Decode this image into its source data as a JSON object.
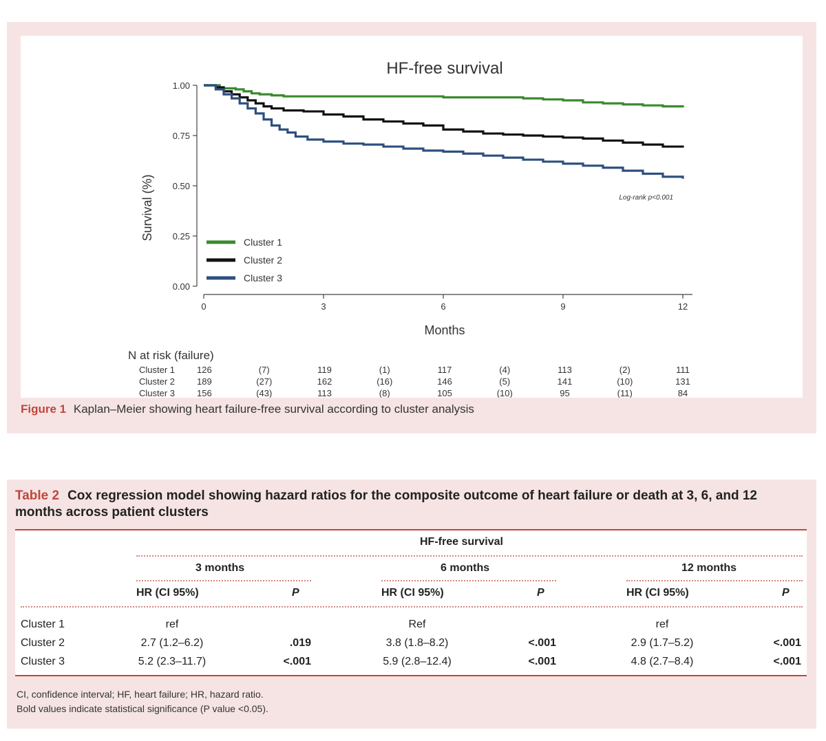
{
  "figure": {
    "label": "Figure 1",
    "caption": "Kaplan–Meier showing heart failure-free survival according to cluster analysis"
  },
  "chart_data": {
    "type": "line",
    "title": "HF-free survival",
    "xlabel": "Months",
    "ylabel": "Survival (%)",
    "xlim": [
      0,
      12
    ],
    "ylim": [
      0,
      1
    ],
    "x_ticks": [
      "0",
      "3",
      "6",
      "9",
      "12"
    ],
    "y_ticks": [
      "0.00",
      "0.25",
      "0.50",
      "0.75",
      "1.00"
    ],
    "annotation": "Log-rank p<0.001",
    "series": [
      {
        "name": "Cluster 1",
        "color": "#3a8a2e",
        "x": [
          0,
          0.4,
          0.5,
          0.8,
          1.0,
          1.2,
          1.4,
          1.7,
          2.0,
          3.0,
          4.0,
          5.0,
          5.5,
          6.0,
          6.5,
          7.0,
          7.5,
          8.0,
          8.5,
          9.0,
          9.5,
          10.0,
          10.5,
          11.0,
          11.5,
          12.0
        ],
        "y": [
          1.0,
          0.99,
          0.985,
          0.98,
          0.97,
          0.96,
          0.955,
          0.95,
          0.945,
          0.945,
          0.945,
          0.945,
          0.945,
          0.94,
          0.94,
          0.94,
          0.94,
          0.935,
          0.93,
          0.925,
          0.915,
          0.91,
          0.905,
          0.9,
          0.895,
          0.89
        ]
      },
      {
        "name": "Cluster 2",
        "color": "#111111",
        "x": [
          0,
          0.3,
          0.5,
          0.7,
          0.9,
          1.1,
          1.3,
          1.5,
          1.7,
          2.0,
          2.5,
          3.0,
          3.5,
          4.0,
          4.5,
          5.0,
          5.5,
          6.0,
          6.5,
          7.0,
          7.5,
          8.0,
          8.5,
          9.0,
          9.5,
          10.0,
          10.5,
          11.0,
          11.5,
          12.0
        ],
        "y": [
          1.0,
          0.99,
          0.97,
          0.955,
          0.94,
          0.925,
          0.91,
          0.895,
          0.885,
          0.875,
          0.87,
          0.855,
          0.845,
          0.83,
          0.82,
          0.81,
          0.8,
          0.78,
          0.77,
          0.76,
          0.755,
          0.75,
          0.745,
          0.74,
          0.735,
          0.725,
          0.715,
          0.705,
          0.695,
          0.69
        ]
      },
      {
        "name": "Cluster 3",
        "color": "#2d4f7f",
        "x": [
          0,
          0.3,
          0.5,
          0.7,
          0.9,
          1.1,
          1.3,
          1.5,
          1.7,
          1.9,
          2.1,
          2.3,
          2.6,
          3.0,
          3.5,
          4.0,
          4.5,
          5.0,
          5.5,
          6.0,
          6.5,
          7.0,
          7.5,
          8.0,
          8.5,
          9.0,
          9.5,
          10.0,
          10.5,
          11.0,
          11.5,
          12.0
        ],
        "y": [
          1.0,
          0.98,
          0.955,
          0.935,
          0.91,
          0.885,
          0.86,
          0.83,
          0.8,
          0.78,
          0.765,
          0.745,
          0.73,
          0.72,
          0.71,
          0.705,
          0.695,
          0.685,
          0.675,
          0.67,
          0.66,
          0.65,
          0.64,
          0.63,
          0.62,
          0.61,
          0.6,
          0.59,
          0.575,
          0.56,
          0.545,
          0.535
        ]
      }
    ],
    "risk_table": {
      "title": "N at risk (failure)",
      "rows": [
        {
          "label": "Cluster 1",
          "values": [
            "126",
            "(7)",
            "119",
            "(1)",
            "117",
            "(4)",
            "113",
            "(2)",
            "111"
          ]
        },
        {
          "label": "Cluster 2",
          "values": [
            "189",
            "(27)",
            "162",
            "(16)",
            "146",
            "(5)",
            "141",
            "(10)",
            "131"
          ]
        },
        {
          "label": "Cluster 3",
          "values": [
            "156",
            "(43)",
            "113",
            "(8)",
            "105",
            "(10)",
            "95",
            "(11)",
            "84"
          ]
        }
      ]
    }
  },
  "table": {
    "label": "Table 2",
    "title": "Cox regression model showing hazard ratios for the composite outcome of heart failure or death at 3, 6, and 12 months across patient clusters",
    "group_header": "HF-free survival",
    "periods": [
      "3 months",
      "6 months",
      "12 months"
    ],
    "col_hr": "HR (CI 95%)",
    "col_p": "P",
    "rows": [
      {
        "label": "Cluster 1",
        "hr": [
          "ref",
          "Ref",
          "ref"
        ],
        "p": [
          "",
          "",
          ""
        ]
      },
      {
        "label": "Cluster 2",
        "hr": [
          "2.7 (1.2–6.2)",
          "3.8 (1.8–8.2)",
          "2.9 (1.7–5.2)"
        ],
        "p": [
          ".019",
          "<.001",
          "<.001"
        ]
      },
      {
        "label": "Cluster 3",
        "hr": [
          "5.2 (2.3–11.7)",
          "5.9 (2.8–12.4)",
          "4.8 (2.7–8.4)"
        ],
        "p": [
          "<.001",
          "<.001",
          "<.001"
        ]
      }
    ],
    "footnote_1": "CI, confidence interval; HF, heart failure; HR, hazard ratio.",
    "footnote_2": "Bold values indicate statistical significance (P value <0.05)."
  }
}
